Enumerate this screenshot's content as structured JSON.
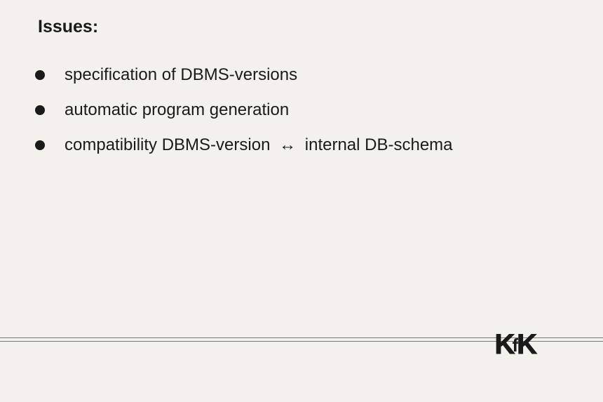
{
  "title": "Issues:",
  "bullets": [
    {
      "text": "specification of DBMS-versions"
    },
    {
      "text": "automatic program generation"
    },
    {
      "pre": "compatibility DBMS-version",
      "arrow": "↔",
      "post": "internal DB-schema"
    }
  ],
  "logo": {
    "left": "K",
    "mid": "f",
    "right": "K"
  },
  "colors": {
    "background": "#f4f1ed",
    "text": "#1a1a1a",
    "rule": "#777777"
  },
  "typography": {
    "title_fontsize": 25,
    "item_fontsize": 24,
    "font_family": "Helvetica"
  }
}
